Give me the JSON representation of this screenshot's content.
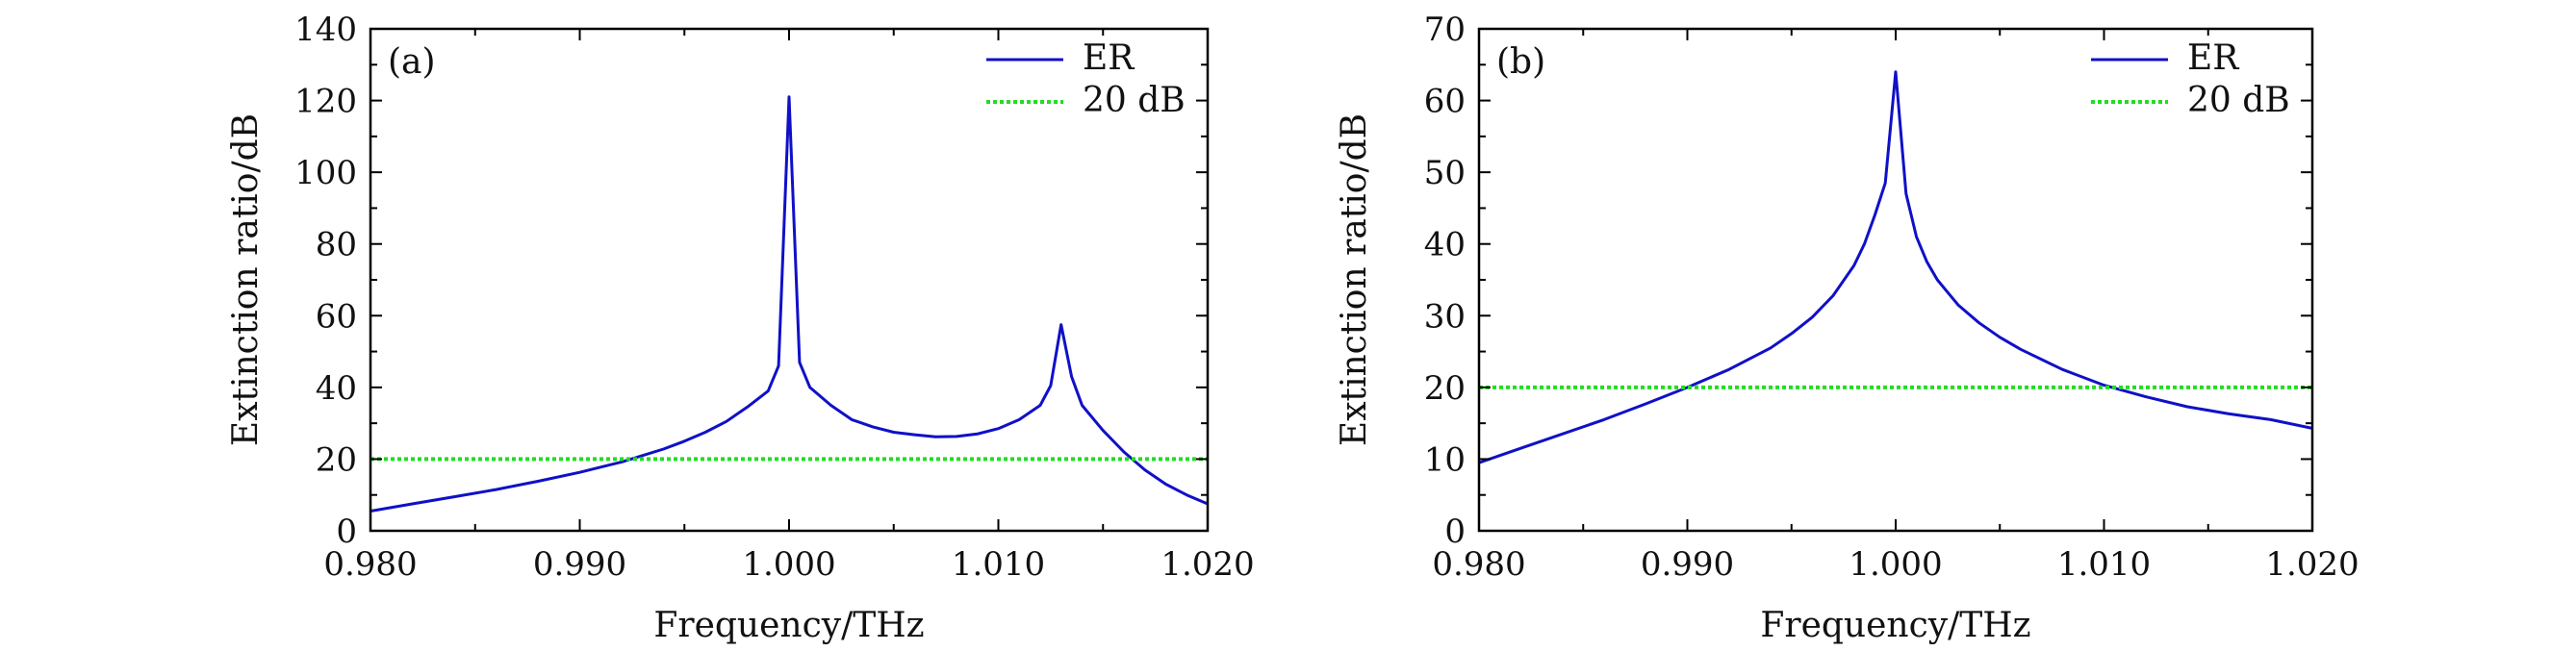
{
  "chart_data": [
    {
      "type": "line",
      "panel_label": "(a)",
      "xlabel": "Frequency/THz",
      "ylabel": "Extinction ratio/dB",
      "xlim": [
        0.98,
        1.02
      ],
      "ylim": [
        0,
        140
      ],
      "xticks": [
        "0.980",
        "0.990",
        "1.000",
        "1.010",
        "1.020"
      ],
      "xtick_values": [
        0.98,
        0.99,
        1.0,
        1.01,
        1.02
      ],
      "yticks": [
        "0",
        "20",
        "40",
        "60",
        "80",
        "100",
        "120",
        "140"
      ],
      "ytick_values": [
        0,
        20,
        40,
        60,
        80,
        100,
        120,
        140
      ],
      "grid": false,
      "legend_position": "top-right",
      "series": [
        {
          "name": "ER",
          "color": "#1010c8",
          "style": "solid",
          "x": [
            0.98,
            0.982,
            0.984,
            0.986,
            0.988,
            0.99,
            0.992,
            0.994,
            0.995,
            0.996,
            0.997,
            0.998,
            0.999,
            0.9995,
            1.0,
            1.0005,
            1.001,
            1.002,
            1.003,
            1.004,
            1.005,
            1.006,
            1.007,
            1.008,
            1.009,
            1.01,
            1.011,
            1.012,
            1.0125,
            1.013,
            1.0135,
            1.014,
            1.015,
            1.016,
            1.017,
            1.018,
            1.019,
            1.02
          ],
          "y": [
            5.5,
            7.5,
            9.5,
            11.5,
            13.8,
            16.3,
            19.2,
            22.8,
            25,
            27.5,
            30.5,
            34.5,
            39,
            46,
            121,
            47,
            40,
            35,
            31,
            29,
            27.5,
            26.8,
            26.2,
            26.3,
            27,
            28.5,
            31,
            35,
            40.5,
            57.5,
            43,
            35,
            28,
            22,
            17,
            13,
            10,
            7.5
          ]
        },
        {
          "name": "20 dB",
          "color": "#22dd22",
          "style": "dotted",
          "x": [
            0.98,
            1.02
          ],
          "y": [
            20,
            20
          ]
        }
      ]
    },
    {
      "type": "line",
      "panel_label": "(b)",
      "xlabel": "Frequency/THz",
      "ylabel": "Extinction ratio/dB",
      "xlim": [
        0.98,
        1.02
      ],
      "ylim": [
        0,
        70
      ],
      "xticks": [
        "0.980",
        "0.990",
        "1.000",
        "1.010",
        "1.020"
      ],
      "xtick_values": [
        0.98,
        0.99,
        1.0,
        1.01,
        1.02
      ],
      "yticks": [
        "0",
        "10",
        "20",
        "30",
        "40",
        "50",
        "60",
        "70"
      ],
      "ytick_values": [
        0,
        10,
        20,
        30,
        40,
        50,
        60,
        70
      ],
      "grid": false,
      "legend_position": "top-right",
      "series": [
        {
          "name": "ER",
          "color": "#1010c8",
          "style": "solid",
          "x": [
            0.98,
            0.982,
            0.984,
            0.986,
            0.988,
            0.99,
            0.992,
            0.994,
            0.995,
            0.996,
            0.997,
            0.998,
            0.9985,
            0.999,
            0.9995,
            1.0,
            1.0005,
            1.001,
            1.0015,
            1.002,
            1.003,
            1.004,
            1.005,
            1.006,
            1.008,
            1.01,
            1.012,
            1.014,
            1.016,
            1.018,
            1.02
          ],
          "y": [
            9.5,
            11.5,
            13.5,
            15.5,
            17.7,
            20.0,
            22.5,
            25.5,
            27.5,
            29.8,
            32.8,
            37.0,
            40.0,
            44.0,
            48.5,
            64.0,
            47.0,
            41.0,
            37.5,
            35.0,
            31.5,
            29.0,
            27.0,
            25.3,
            22.5,
            20.3,
            18.7,
            17.3,
            16.3,
            15.5,
            14.3
          ]
        },
        {
          "name": "20 dB",
          "color": "#22dd22",
          "style": "dotted",
          "x": [
            0.98,
            1.02
          ],
          "y": [
            20,
            20
          ]
        }
      ]
    }
  ]
}
